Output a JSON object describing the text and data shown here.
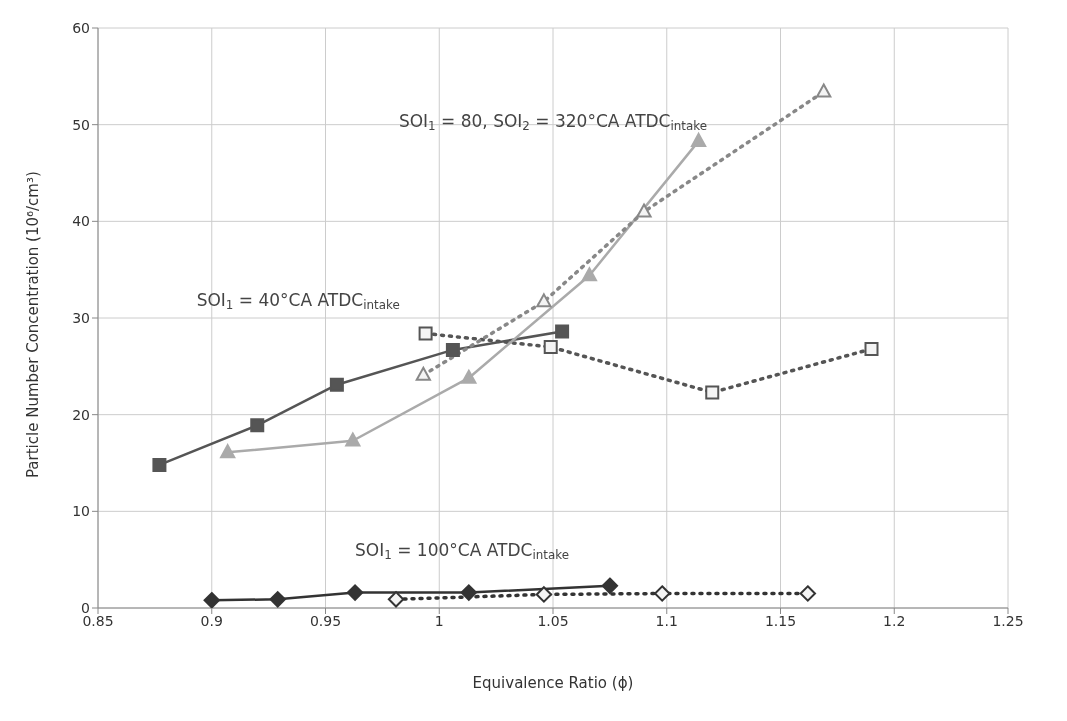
{
  "chart_data": {
    "type": "line",
    "xlabel": "Equivalence Ratio (ϕ)",
    "ylabel": "Particle Number Concentration (10⁶/cm³)",
    "xlim": [
      0.85,
      1.25
    ],
    "xticks": [
      0.85,
      0.9,
      0.95,
      1,
      1.05,
      1.1,
      1.15,
      1.2,
      1.25
    ],
    "ylim": [
      0,
      60
    ],
    "yticks": [
      0,
      10,
      20,
      30,
      40,
      50,
      60
    ],
    "grid": true,
    "legend": false,
    "series": [
      {
        "color": "#555555",
        "marker": "square",
        "line_style": "solid",
        "x": [
          0.877,
          0.92,
          0.955,
          1.006,
          1.054
        ],
        "values": [
          14.8,
          18.9,
          23.1,
          26.7,
          28.6
        ]
      },
      {
        "color": "#555555",
        "marker": "square",
        "line_style": "dotted",
        "x": [
          0.994,
          1.049,
          1.12,
          1.19
        ],
        "values": [
          28.4,
          27.0,
          22.3,
          26.8
        ]
      },
      {
        "color": "#aaaaaa",
        "marker": "triangle",
        "line_style": "solid",
        "x": [
          0.907,
          0.962,
          1.013,
          1.066,
          1.114
        ],
        "values": [
          16.1,
          17.3,
          23.8,
          34.4,
          48.3
        ]
      },
      {
        "color": "#888888",
        "marker": "triangle",
        "line_style": "dotted",
        "x": [
          0.993,
          1.046,
          1.09,
          1.169
        ],
        "values": [
          24.1,
          31.7,
          41.0,
          53.4
        ]
      },
      {
        "color": "#333333",
        "marker": "diamond",
        "line_style": "solid",
        "x": [
          0.9,
          0.929,
          0.963,
          1.013,
          1.075
        ],
        "values": [
          0.8,
          0.9,
          1.6,
          1.6,
          2.3
        ]
      },
      {
        "color": "#333333",
        "marker": "diamond",
        "line_style": "dotted",
        "x": [
          0.981,
          1.046,
          1.098,
          1.162
        ],
        "values": [
          0.9,
          1.4,
          1.5,
          1.5
        ]
      }
    ],
    "annotations": [
      "SOI$_{1}$ = 80, SOI$_{2}$ = 320°CA ATDC$_{intake}$",
      "SOI$_{1}$ = 40°CA ATDC$_{intake}$",
      "SOI$_{1}$ = 100°CA ATDC$_{intake}$"
    ]
  }
}
